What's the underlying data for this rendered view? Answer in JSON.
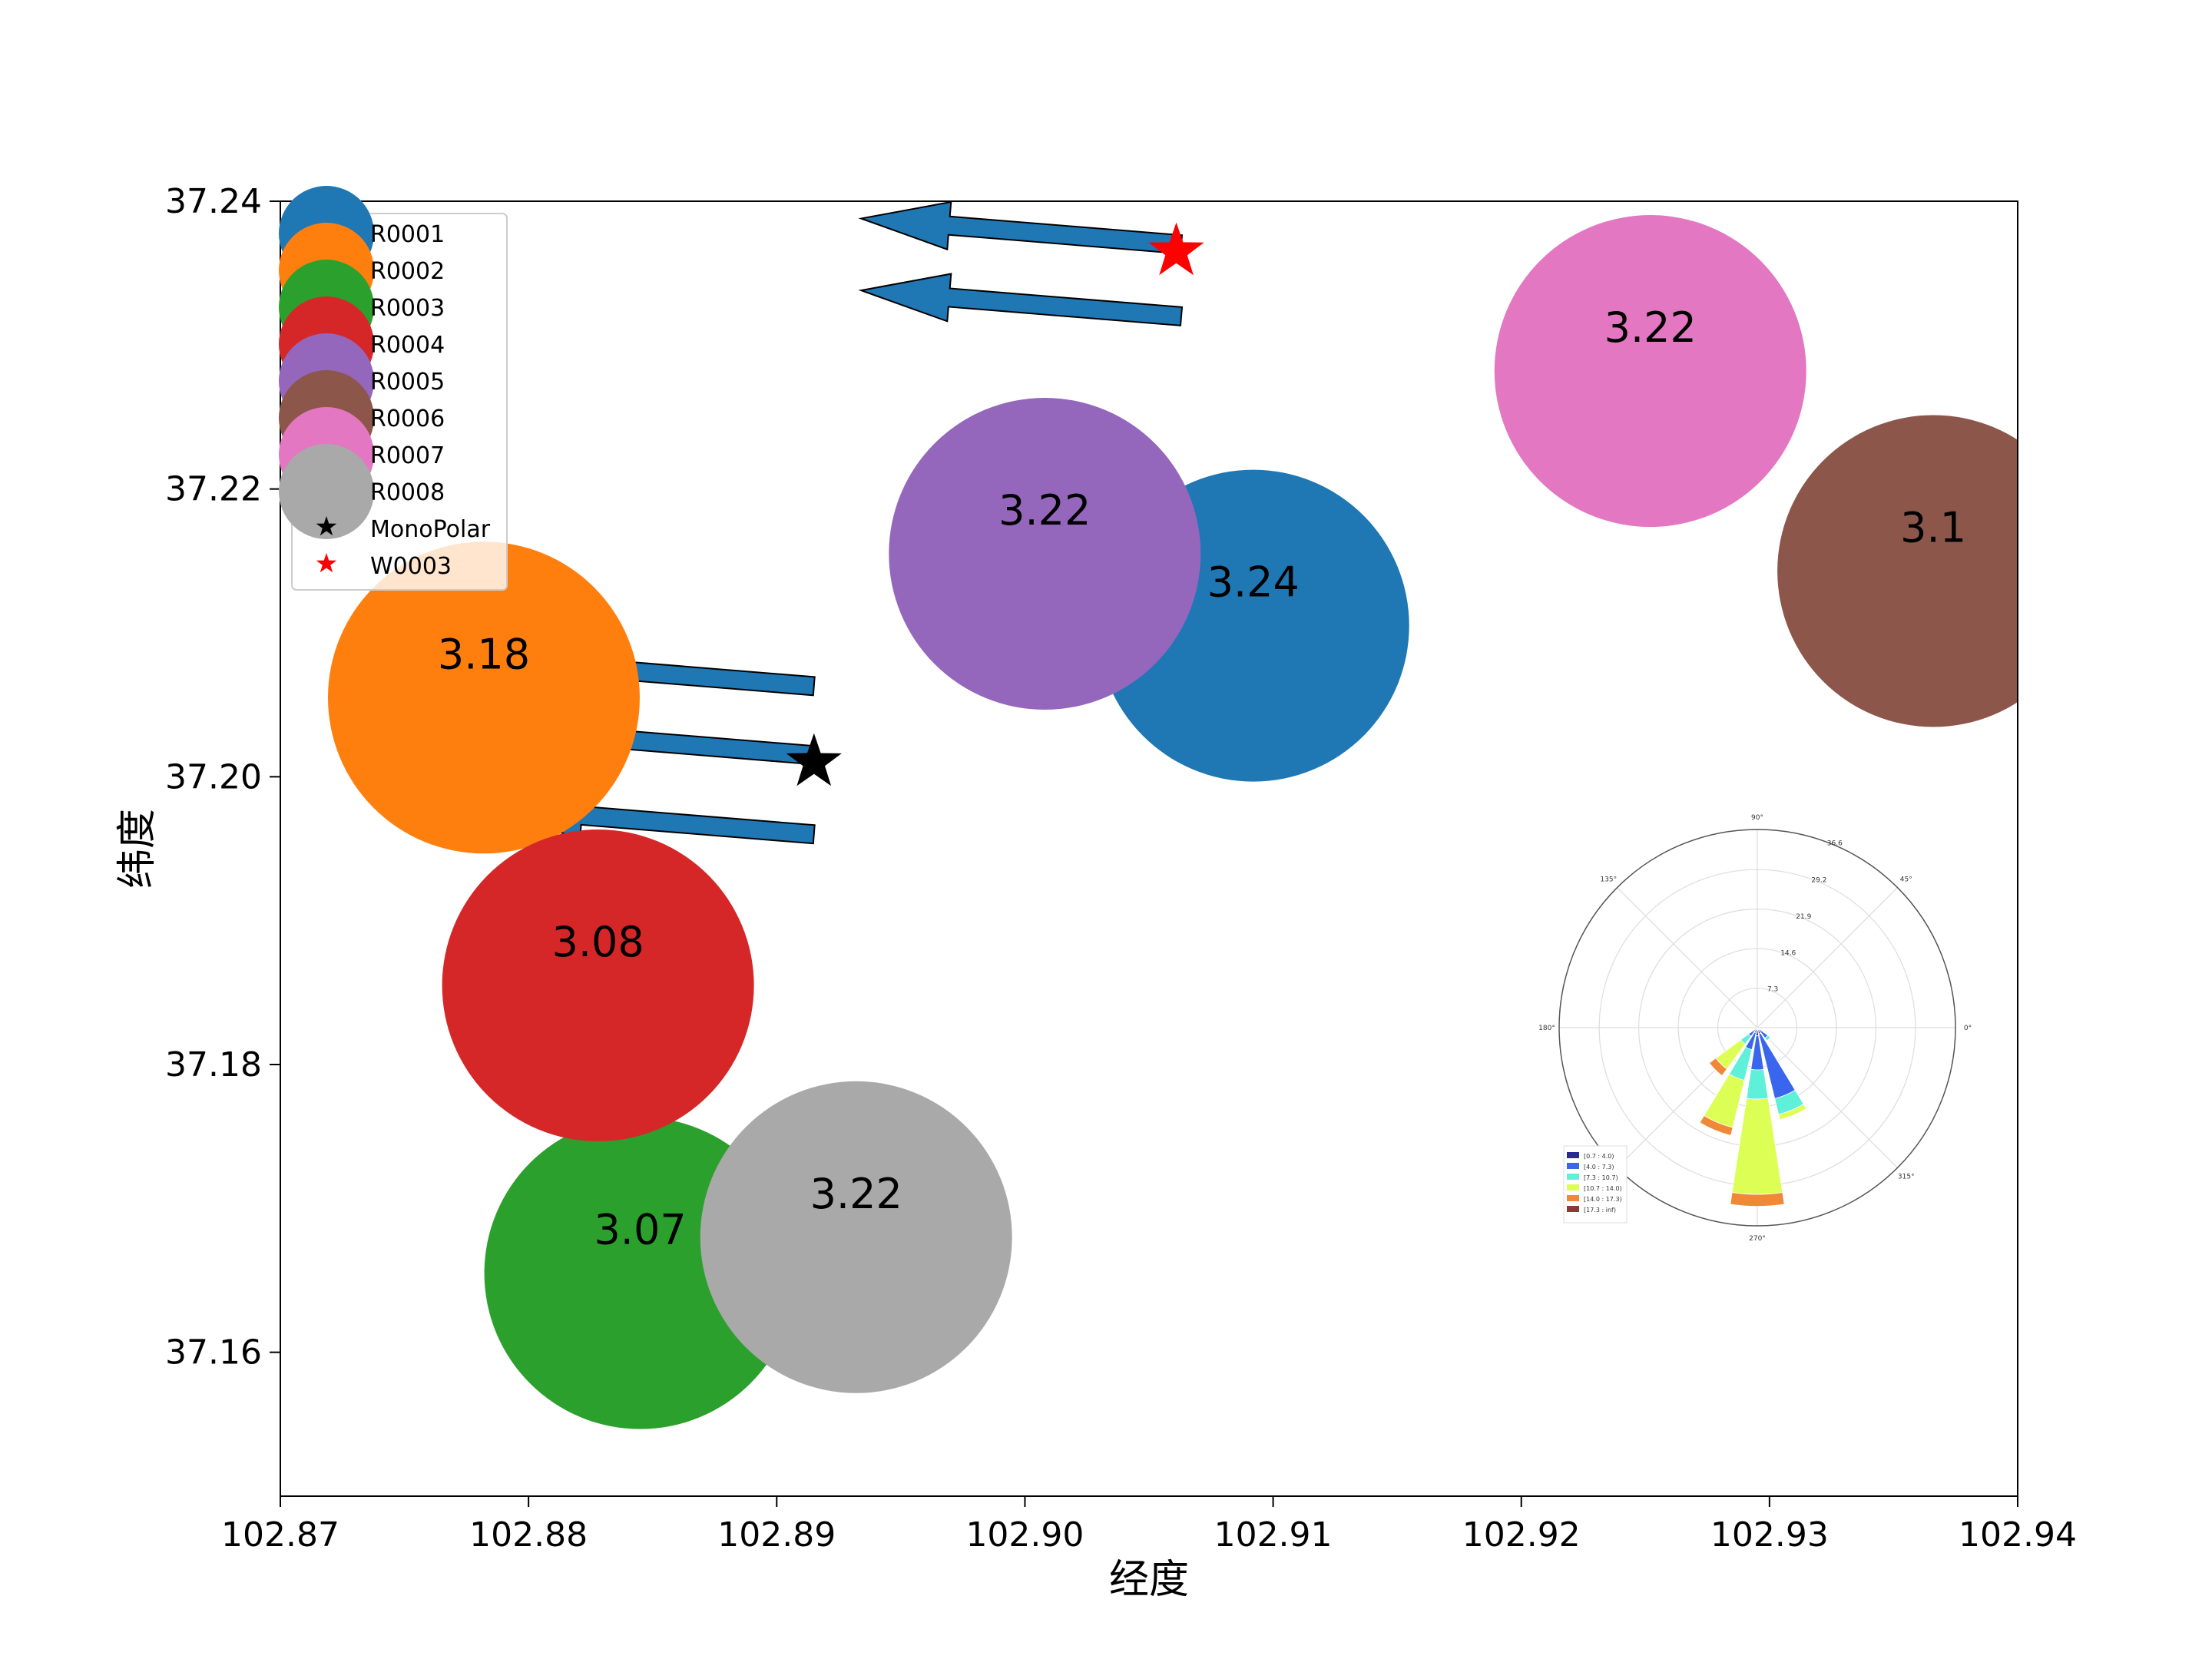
{
  "chart_data": {
    "type": "scatter",
    "title": "",
    "xlabel": "经度",
    "ylabel": "纬度",
    "xlim": [
      102.87,
      102.94
    ],
    "ylim": [
      37.15,
      37.24
    ],
    "xticks": [
      "102.87",
      "102.88",
      "102.89",
      "102.90",
      "102.91",
      "102.92",
      "102.93",
      "102.94"
    ],
    "yticks": [
      "37.16",
      "37.18",
      "37.20",
      "37.22",
      "37.24"
    ],
    "grid": false,
    "legend_position": "top-left",
    "series": [
      {
        "name": "R0001",
        "color": "#1f77b4",
        "x": 102.9092,
        "y": 37.2105,
        "label": "3.24"
      },
      {
        "name": "R0002",
        "color": "#ff7f0e",
        "x": 102.8782,
        "y": 37.2055,
        "label": "3.18"
      },
      {
        "name": "R0003",
        "color": "#2ca02c",
        "x": 102.8845,
        "y": 37.1655,
        "label": "3.07"
      },
      {
        "name": "R0004",
        "color": "#d62728",
        "x": 102.8828,
        "y": 37.1855,
        "label": "3.08"
      },
      {
        "name": "R0005",
        "color": "#9467bd",
        "x": 102.9008,
        "y": 37.2155,
        "label": "3.22"
      },
      {
        "name": "R0006",
        "color": "#8c564b",
        "x": 102.9366,
        "y": 37.2143,
        "label": "3.1"
      },
      {
        "name": "R0007",
        "color": "#e377c2",
        "x": 102.9252,
        "y": 37.2282,
        "label": "3.22"
      },
      {
        "name": "R0008",
        "color": "#a9a9a9",
        "x": 102.8932,
        "y": 37.168,
        "label": "3.22"
      }
    ],
    "markers": [
      {
        "name": "MonoPolar",
        "color": "#000000",
        "marker": "star",
        "x": 102.8915,
        "y": 37.201
      },
      {
        "name": "W0003",
        "color": "#ff0000",
        "marker": "star",
        "x": 102.9061,
        "y": 37.2365
      }
    ],
    "arrows": [
      {
        "from": [
          102.9063,
          37.232
        ],
        "to": [
          102.8934,
          37.2338
        ],
        "color": "#1f77b4"
      },
      {
        "from": [
          102.9063,
          37.237
        ],
        "to": [
          102.8934,
          37.2388
        ],
        "color": "#1f77b4"
      },
      {
        "from": [
          102.8915,
          37.2063
        ],
        "to": [
          102.8786,
          37.2081
        ],
        "color": "#1f77b4"
      },
      {
        "from": [
          102.8915,
          37.2015
        ],
        "to": [
          102.8786,
          37.2033
        ],
        "color": "#1f77b4"
      },
      {
        "from": [
          102.8915,
          37.196
        ],
        "to": [
          102.8786,
          37.1978
        ],
        "color": "#1f77b4"
      }
    ],
    "wind_rose": {
      "angle_labels": [
        "90°",
        "45°",
        "0°",
        "315°",
        "270°",
        "135°",
        "180°"
      ],
      "radial_labels": [
        "7.3",
        "14.6",
        "21.9",
        "29.2",
        "36.6"
      ],
      "rmax": 36.6,
      "legend": [
        {
          "label": "[0.7 : 4.0)",
          "color": "#2c2c8c"
        },
        {
          "label": "[4.0 : 7.3)",
          "color": "#3a66ee"
        },
        {
          "label": "[7.3 : 10.7)",
          "color": "#5ef0d8"
        },
        {
          "label": "[10.7 : 14.0)",
          "color": "#ddff55"
        },
        {
          "label": "[14.0 : 17.3)",
          "color": "#f08838"
        },
        {
          "label": "[17.3 : inf)",
          "color": "#8b3a3a"
        }
      ],
      "sectors": [
        {
          "angle": 270,
          "cum": [
            1.5,
            7.8,
            13.2,
            30.8,
            33.0
          ]
        },
        {
          "angle": 292.5,
          "cum": [
            1.2,
            13.5,
            16.5,
            17.5
          ]
        },
        {
          "angle": 247.5,
          "cum": [
            1.0,
            4.2,
            10.0,
            19.0,
            20.5
          ]
        },
        {
          "angle": 225,
          "cum": [
            0.8,
            2.0,
            3.8,
            9.5,
            11.0
          ]
        },
        {
          "angle": 315,
          "cum": [
            0.5,
            2.4,
            3.0
          ]
        },
        {
          "angle": 337.5,
          "cum": [
            0.6
          ]
        }
      ]
    }
  }
}
